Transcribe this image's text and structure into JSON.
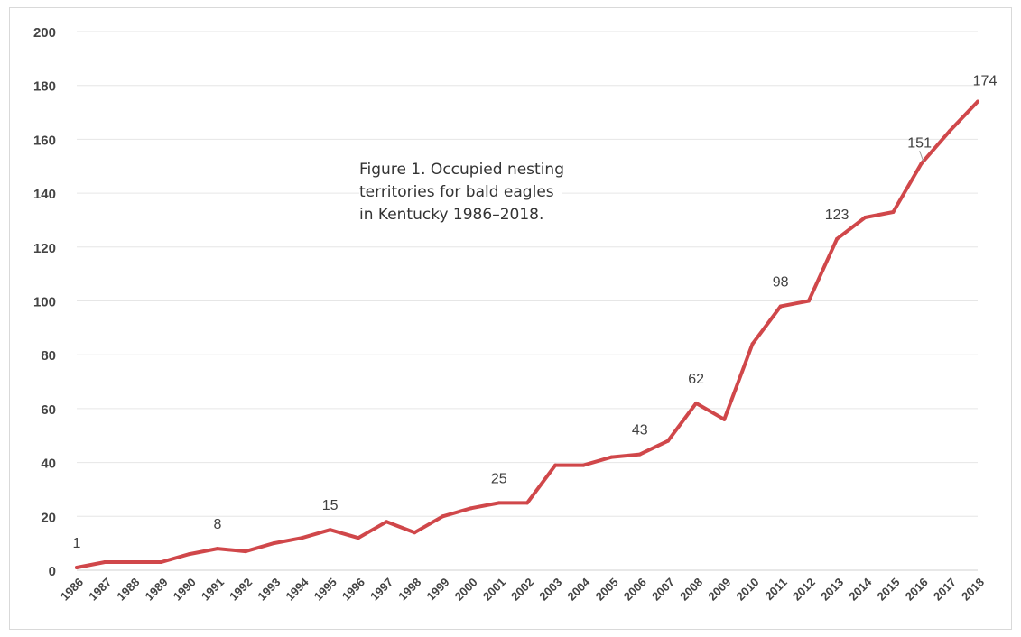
{
  "caption": {
    "line1": "Figure 1. Occupied nesting",
    "line2": "territories for bald eagles",
    "line3": "in Kentucky 1986–2018."
  },
  "chart_data": {
    "type": "line",
    "title": "",
    "xlabel": "",
    "ylabel": "",
    "ylim": [
      0,
      200
    ],
    "yticks": [
      0,
      20,
      40,
      60,
      80,
      100,
      120,
      140,
      160,
      180,
      200
    ],
    "grid": true,
    "line_color": "#d0474a",
    "categories": [
      "1986",
      "1987",
      "1988",
      "1989",
      "1990",
      "1991",
      "1992",
      "1993",
      "1994",
      "1995",
      "1996",
      "1997",
      "1998",
      "1999",
      "2000",
      "2001",
      "2002",
      "2003",
      "2004",
      "2005",
      "2006",
      "2007",
      "2008",
      "2009",
      "2010",
      "2011",
      "2012",
      "2013",
      "2014",
      "2015",
      "2016",
      "2017",
      "2018"
    ],
    "series": [
      {
        "values": [
          1,
          3,
          3,
          3,
          6,
          8,
          7,
          10,
          12,
          15,
          12,
          18,
          14,
          20,
          23,
          25,
          25,
          39,
          39,
          42,
          43,
          48,
          62,
          56,
          84,
          98,
          100,
          123,
          131,
          133,
          151,
          163,
          174
        ]
      }
    ],
    "data_labels": [
      {
        "category": "1986",
        "text": "1"
      },
      {
        "category": "1991",
        "text": "8"
      },
      {
        "category": "1995",
        "text": "15"
      },
      {
        "category": "2001",
        "text": "25"
      },
      {
        "category": "2006",
        "text": "43"
      },
      {
        "category": "2008",
        "text": "62"
      },
      {
        "category": "2011",
        "text": "98"
      },
      {
        "category": "2013",
        "text": "123"
      },
      {
        "category": "2016",
        "text": "151"
      },
      {
        "category": "2018",
        "text": "174"
      }
    ]
  }
}
